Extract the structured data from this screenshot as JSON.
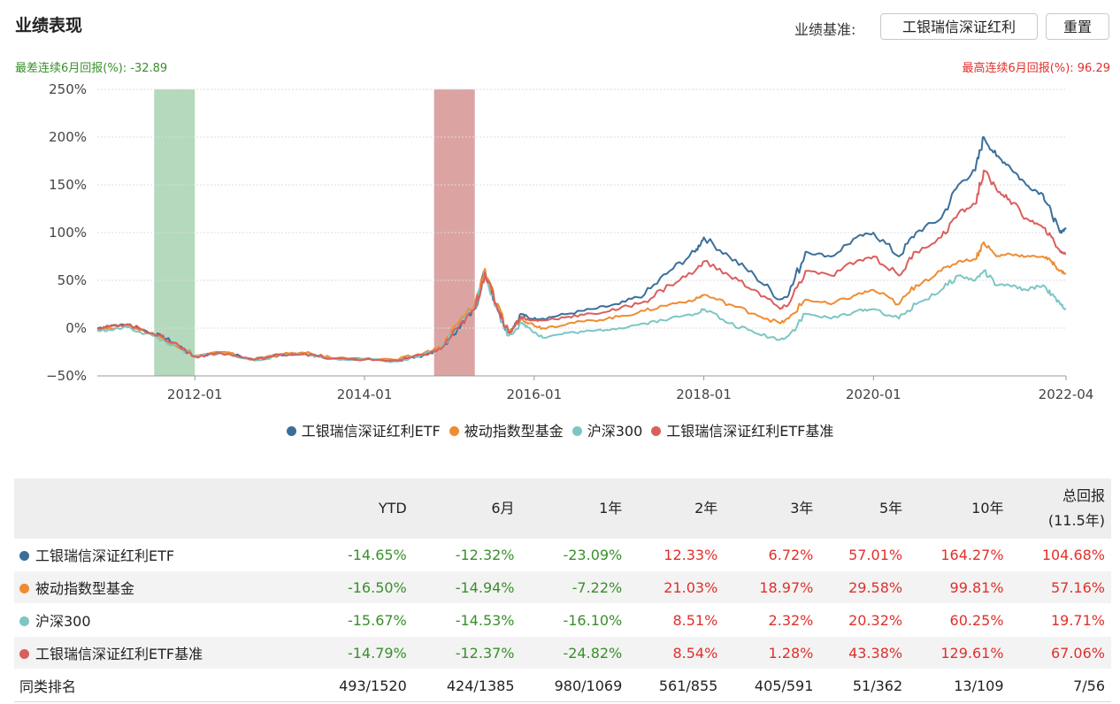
{
  "header": {
    "title": "业绩表现",
    "benchmark_label": "业绩基准:",
    "benchmark_value": "工银瑞信深证红利",
    "reset_label": "重置"
  },
  "stats": {
    "min_text": "最差连续6月回报(%):  -32.89",
    "max_text": "最高连续6月回报(%):  96.29"
  },
  "chart_data": {
    "type": "line",
    "y_ticks": [
      "250%",
      "200%",
      "150%",
      "100%",
      "50%",
      "0%",
      "−50%"
    ],
    "x_ticks": [
      "2012-01",
      "2014-01",
      "2016-01",
      "2018-01",
      "2020-01",
      "2022-04"
    ],
    "ylim": [
      -50,
      250
    ],
    "xlim": [
      2010.85,
      2022.27
    ],
    "shaded_regions": [
      {
        "label": "worst 6 months",
        "start": 2011.52,
        "end": 2012.0,
        "color": "#b5d9bd"
      },
      {
        "label": "best 6 months",
        "start": 2014.82,
        "end": 2015.3,
        "color": "#dba4a2"
      }
    ],
    "series": [
      {
        "name": "工银瑞信深证红利ETF",
        "color": "#3b6f9a",
        "points": [
          [
            2010.85,
            0
          ],
          [
            2011.0,
            2
          ],
          [
            2011.2,
            4
          ],
          [
            2011.5,
            -5
          ],
          [
            2011.75,
            -15
          ],
          [
            2012.0,
            -30
          ],
          [
            2012.3,
            -25
          ],
          [
            2012.7,
            -33
          ],
          [
            2013.0,
            -28
          ],
          [
            2013.3,
            -27
          ],
          [
            2013.6,
            -32
          ],
          [
            2014.0,
            -33
          ],
          [
            2014.4,
            -34
          ],
          [
            2014.7,
            -28
          ],
          [
            2014.9,
            -22
          ],
          [
            2015.1,
            0
          ],
          [
            2015.3,
            20
          ],
          [
            2015.42,
            60
          ],
          [
            2015.55,
            25
          ],
          [
            2015.7,
            -5
          ],
          [
            2015.85,
            15
          ],
          [
            2015.95,
            10
          ],
          [
            2016.1,
            10
          ],
          [
            2016.4,
            15
          ],
          [
            2016.7,
            20
          ],
          [
            2017.0,
            25
          ],
          [
            2017.3,
            35
          ],
          [
            2017.6,
            60
          ],
          [
            2017.9,
            80
          ],
          [
            2018.0,
            95
          ],
          [
            2018.3,
            75
          ],
          [
            2018.6,
            55
          ],
          [
            2018.9,
            30
          ],
          [
            2019.0,
            35
          ],
          [
            2019.2,
            80
          ],
          [
            2019.5,
            75
          ],
          [
            2019.8,
            95
          ],
          [
            2020.0,
            100
          ],
          [
            2020.3,
            75
          ],
          [
            2020.5,
            100
          ],
          [
            2020.8,
            115
          ],
          [
            2021.0,
            150
          ],
          [
            2021.2,
            165
          ],
          [
            2021.3,
            200
          ],
          [
            2021.45,
            180
          ],
          [
            2021.6,
            170
          ],
          [
            2021.8,
            150
          ],
          [
            2022.0,
            140
          ],
          [
            2022.1,
            120
          ],
          [
            2022.2,
            100
          ],
          [
            2022.27,
            105
          ]
        ]
      },
      {
        "name": "被动指数型基金",
        "color": "#ef8c32",
        "points": [
          [
            2010.85,
            -2
          ],
          [
            2011.0,
            0
          ],
          [
            2011.2,
            3
          ],
          [
            2011.5,
            -6
          ],
          [
            2011.75,
            -16
          ],
          [
            2012.0,
            -29
          ],
          [
            2012.3,
            -25
          ],
          [
            2012.7,
            -33
          ],
          [
            2013.0,
            -27
          ],
          [
            2013.3,
            -26
          ],
          [
            2013.6,
            -31
          ],
          [
            2014.0,
            -32
          ],
          [
            2014.4,
            -33
          ],
          [
            2014.7,
            -26
          ],
          [
            2014.9,
            -20
          ],
          [
            2015.1,
            5
          ],
          [
            2015.3,
            25
          ],
          [
            2015.42,
            62
          ],
          [
            2015.55,
            25
          ],
          [
            2015.7,
            -5
          ],
          [
            2015.85,
            10
          ],
          [
            2015.95,
            5
          ],
          [
            2016.1,
            0
          ],
          [
            2016.4,
            5
          ],
          [
            2016.7,
            8
          ],
          [
            2017.0,
            12
          ],
          [
            2017.3,
            18
          ],
          [
            2017.6,
            25
          ],
          [
            2017.9,
            30
          ],
          [
            2018.0,
            35
          ],
          [
            2018.3,
            25
          ],
          [
            2018.6,
            15
          ],
          [
            2018.9,
            5
          ],
          [
            2019.0,
            10
          ],
          [
            2019.2,
            30
          ],
          [
            2019.5,
            25
          ],
          [
            2019.8,
            35
          ],
          [
            2020.0,
            40
          ],
          [
            2020.3,
            25
          ],
          [
            2020.5,
            45
          ],
          [
            2020.8,
            60
          ],
          [
            2021.0,
            70
          ],
          [
            2021.2,
            72
          ],
          [
            2021.3,
            90
          ],
          [
            2021.45,
            75
          ],
          [
            2021.6,
            78
          ],
          [
            2021.8,
            75
          ],
          [
            2022.0,
            75
          ],
          [
            2022.1,
            70
          ],
          [
            2022.2,
            60
          ],
          [
            2022.27,
            57
          ]
        ]
      },
      {
        "name": "沪深300",
        "color": "#7cc6c4",
        "points": [
          [
            2010.85,
            -3
          ],
          [
            2011.0,
            -2
          ],
          [
            2011.2,
            1
          ],
          [
            2011.5,
            -8
          ],
          [
            2011.75,
            -18
          ],
          [
            2012.0,
            -30
          ],
          [
            2012.3,
            -26
          ],
          [
            2012.7,
            -34
          ],
          [
            2013.0,
            -28
          ],
          [
            2013.3,
            -27
          ],
          [
            2013.6,
            -32
          ],
          [
            2014.0,
            -33
          ],
          [
            2014.4,
            -35
          ],
          [
            2014.7,
            -28
          ],
          [
            2014.9,
            -22
          ],
          [
            2015.1,
            3
          ],
          [
            2015.3,
            22
          ],
          [
            2015.42,
            58
          ],
          [
            2015.55,
            22
          ],
          [
            2015.7,
            -8
          ],
          [
            2015.85,
            5
          ],
          [
            2015.95,
            0
          ],
          [
            2016.1,
            -10
          ],
          [
            2016.4,
            -5
          ],
          [
            2016.7,
            -3
          ],
          [
            2017.0,
            0
          ],
          [
            2017.3,
            5
          ],
          [
            2017.6,
            10
          ],
          [
            2017.9,
            15
          ],
          [
            2018.0,
            20
          ],
          [
            2018.3,
            5
          ],
          [
            2018.6,
            -5
          ],
          [
            2018.9,
            -12
          ],
          [
            2019.0,
            -8
          ],
          [
            2019.2,
            15
          ],
          [
            2019.5,
            10
          ],
          [
            2019.8,
            18
          ],
          [
            2020.0,
            20
          ],
          [
            2020.3,
            10
          ],
          [
            2020.5,
            25
          ],
          [
            2020.8,
            40
          ],
          [
            2021.0,
            55
          ],
          [
            2021.2,
            50
          ],
          [
            2021.3,
            60
          ],
          [
            2021.45,
            45
          ],
          [
            2021.6,
            45
          ],
          [
            2021.8,
            40
          ],
          [
            2022.0,
            45
          ],
          [
            2022.1,
            35
          ],
          [
            2022.2,
            25
          ],
          [
            2022.27,
            20
          ]
        ]
      },
      {
        "name": "工银瑞信深证红利ETF基准",
        "color": "#d95f5d",
        "points": [
          [
            2010.85,
            0
          ],
          [
            2011.0,
            2
          ],
          [
            2011.2,
            4
          ],
          [
            2011.5,
            -5
          ],
          [
            2011.75,
            -15
          ],
          [
            2012.0,
            -30
          ],
          [
            2012.3,
            -26
          ],
          [
            2012.7,
            -33
          ],
          [
            2013.0,
            -28
          ],
          [
            2013.3,
            -27
          ],
          [
            2013.6,
            -32
          ],
          [
            2014.0,
            -33
          ],
          [
            2014.4,
            -34
          ],
          [
            2014.7,
            -28
          ],
          [
            2014.9,
            -22
          ],
          [
            2015.1,
            0
          ],
          [
            2015.3,
            20
          ],
          [
            2015.42,
            58
          ],
          [
            2015.55,
            25
          ],
          [
            2015.7,
            -5
          ],
          [
            2015.85,
            12
          ],
          [
            2015.95,
            8
          ],
          [
            2016.1,
            8
          ],
          [
            2016.4,
            12
          ],
          [
            2016.7,
            15
          ],
          [
            2017.0,
            20
          ],
          [
            2017.3,
            28
          ],
          [
            2017.6,
            45
          ],
          [
            2017.9,
            60
          ],
          [
            2018.0,
            70
          ],
          [
            2018.3,
            55
          ],
          [
            2018.6,
            40
          ],
          [
            2018.9,
            20
          ],
          [
            2019.0,
            25
          ],
          [
            2019.2,
            60
          ],
          [
            2019.5,
            55
          ],
          [
            2019.8,
            70
          ],
          [
            2020.0,
            75
          ],
          [
            2020.3,
            55
          ],
          [
            2020.5,
            80
          ],
          [
            2020.8,
            95
          ],
          [
            2021.0,
            120
          ],
          [
            2021.2,
            130
          ],
          [
            2021.3,
            165
          ],
          [
            2021.45,
            145
          ],
          [
            2021.6,
            135
          ],
          [
            2021.8,
            115
          ],
          [
            2022.0,
            105
          ],
          [
            2022.1,
            95
          ],
          [
            2022.2,
            80
          ],
          [
            2022.27,
            78
          ]
        ]
      }
    ]
  },
  "table": {
    "headers": [
      "YTD",
      "6月",
      "1年",
      "2年",
      "3年",
      "5年",
      "10年"
    ],
    "total_header_line1": "总回报",
    "total_header_line2": "(11.5年)",
    "rows": [
      {
        "name": "工银瑞信深证红利ETF",
        "color": "#3b6f9a",
        "values": [
          "-14.65%",
          "-12.32%",
          "-23.09%",
          "12.33%",
          "6.72%",
          "57.01%",
          "164.27%",
          "104.68%"
        ]
      },
      {
        "name": "被动指数型基金",
        "color": "#ef8c32",
        "values": [
          "-16.50%",
          "-14.94%",
          "-7.22%",
          "21.03%",
          "18.97%",
          "29.58%",
          "99.81%",
          "57.16%"
        ]
      },
      {
        "name": "沪深300",
        "color": "#7cc6c4",
        "values": [
          "-15.67%",
          "-14.53%",
          "-16.10%",
          "8.51%",
          "2.32%",
          "20.32%",
          "60.25%",
          "19.71%"
        ]
      },
      {
        "name": "工银瑞信深证红利ETF基准",
        "color": "#d95f5d",
        "values": [
          "-14.79%",
          "-12.37%",
          "-24.82%",
          "8.54%",
          "1.28%",
          "43.38%",
          "129.61%",
          "67.06%"
        ]
      }
    ],
    "rank_label": "同类排名",
    "rank_values": [
      "493/1520",
      "424/1385",
      "980/1069",
      "561/855",
      "405/591",
      "51/362",
      "13/109",
      "7/56"
    ]
  }
}
